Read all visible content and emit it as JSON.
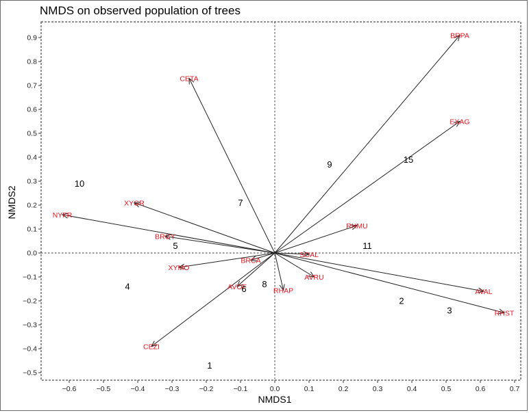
{
  "chart_data": {
    "type": "scatter",
    "title": "NMDS on observed population of trees",
    "xlabel": "NMDS1",
    "ylabel": "NMDS2",
    "xlim": [
      -0.7,
      0.7
    ],
    "ylim": [
      -0.53,
      0.97
    ],
    "xticks": [
      "−0.6",
      "−0.5",
      "−0.4",
      "−0.3",
      "−0.2",
      "−0.1",
      "0.0",
      "0.1",
      "0.2",
      "0.3",
      "0.4",
      "0.5",
      "0.6",
      "0.7"
    ],
    "xtick_values": [
      -0.6,
      -0.5,
      -0.4,
      -0.3,
      -0.2,
      -0.1,
      0.0,
      0.1,
      0.2,
      0.3,
      0.4,
      0.5,
      0.6,
      0.7
    ],
    "yticks": [
      "−0.5",
      "−0.4",
      "−0.3",
      "−0.2",
      "−0.1",
      "0.0",
      "0.1",
      "0.2",
      "0.3",
      "0.4",
      "0.5",
      "0.6",
      "0.7",
      "0.8",
      "0.9"
    ],
    "ytick_values": [
      -0.5,
      -0.4,
      -0.3,
      -0.2,
      -0.1,
      0.0,
      0.1,
      0.2,
      0.3,
      0.4,
      0.5,
      0.6,
      0.7,
      0.8,
      0.9
    ],
    "reference_lines": {
      "x": 0,
      "y": 0,
      "style": "dashed"
    },
    "sites": [
      {
        "label": "1",
        "x": -0.19,
        "y": -0.47
      },
      {
        "label": "2",
        "x": 0.37,
        "y": -0.2
      },
      {
        "label": "3",
        "x": 0.51,
        "y": -0.24
      },
      {
        "label": "4",
        "x": -0.43,
        "y": -0.14
      },
      {
        "label": "5",
        "x": -0.29,
        "y": 0.03
      },
      {
        "label": "6",
        "x": -0.09,
        "y": -0.15
      },
      {
        "label": "7",
        "x": -0.1,
        "y": 0.21
      },
      {
        "label": "8",
        "x": -0.03,
        "y": -0.13
      },
      {
        "label": "9",
        "x": 0.16,
        "y": 0.37
      },
      {
        "label": "10",
        "x": -0.57,
        "y": 0.29
      },
      {
        "label": "11",
        "x": 0.27,
        "y": 0.03
      },
      {
        "label": "15",
        "x": 0.39,
        "y": 0.39
      }
    ],
    "species_vectors": [
      {
        "label": "BRPA",
        "x": 0.54,
        "y": 0.91
      },
      {
        "label": "EXAG",
        "x": 0.54,
        "y": 0.55
      },
      {
        "label": "CETA",
        "x": -0.25,
        "y": 0.73
      },
      {
        "label": "XYGR",
        "x": -0.41,
        "y": 0.21
      },
      {
        "label": "NYFR",
        "x": -0.62,
        "y": 0.16
      },
      {
        "label": "BRGY",
        "x": -0.32,
        "y": 0.07
      },
      {
        "label": "RHMU",
        "x": 0.24,
        "y": 0.115
      },
      {
        "label": "BRCA",
        "x": -0.07,
        "y": -0.03
      },
      {
        "label": "SOAL",
        "x": 0.1,
        "y": -0.005
      },
      {
        "label": "AVRU",
        "x": 0.115,
        "y": -0.1
      },
      {
        "label": "XYMO",
        "x": -0.28,
        "y": -0.06
      },
      {
        "label": "AVOF",
        "x": -0.11,
        "y": -0.14
      },
      {
        "label": "RHAP",
        "x": 0.025,
        "y": -0.155
      },
      {
        "label": "AVAL",
        "x": 0.61,
        "y": -0.16
      },
      {
        "label": "RHST",
        "x": 0.67,
        "y": -0.25
      },
      {
        "label": "CEZI",
        "x": -0.36,
        "y": -0.39
      }
    ],
    "grid": false,
    "legend": "none",
    "colors": {
      "site_label": "#000000",
      "species_label": "#e8141d",
      "arrow": "#222222"
    }
  }
}
